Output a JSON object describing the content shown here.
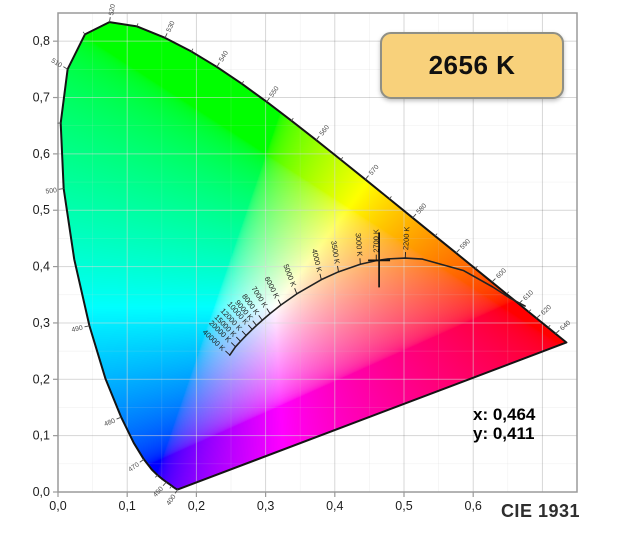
{
  "page": {
    "background": "#ffffff"
  },
  "badge": {
    "label": "2656 K",
    "fill": "#f8d17b",
    "border": "#8f8f85",
    "text_color": "#101010"
  },
  "readout": {
    "x_line": "x: 0,464",
    "y_line": "y: 0,411"
  },
  "caption": {
    "label": "CIE 1931"
  },
  "style": {
    "grid_major": "rgba(0,0,0,0.13)",
    "grid_minor": "rgba(0,0,0,0.05)",
    "grid_major_on_color": "rgba(255,255,255,0.40)",
    "grid_minor_on_color": "rgba(255,255,255,0.16)",
    "border": "#9a9a9a",
    "axis_label": "#1d1d1d",
    "locus_outline": "#141414",
    "planckian": "#222222",
    "wavelength_label": "#4a4a4a",
    "temperature_label": "#1d1d1d",
    "marker": "#111111"
  },
  "chart_data": {
    "type": "area",
    "subtype": "CIE 1931 xy chromaticity diagram with Planckian locus",
    "title": "CIE 1931",
    "xlabel": "",
    "ylabel": "",
    "xlim": [
      0,
      0.75
    ],
    "ylim": [
      0,
      0.85
    ],
    "grid": true,
    "x_ticks": [
      {
        "v": 0.0,
        "label": "0,0"
      },
      {
        "v": 0.1,
        "label": "0,1"
      },
      {
        "v": 0.2,
        "label": "0,2"
      },
      {
        "v": 0.3,
        "label": "0,3"
      },
      {
        "v": 0.4,
        "label": "0,4"
      },
      {
        "v": 0.5,
        "label": "0,5"
      },
      {
        "v": 0.6,
        "label": "0,6"
      }
    ],
    "y_ticks": [
      {
        "v": 0.0,
        "label": "0,0"
      },
      {
        "v": 0.1,
        "label": "0,1"
      },
      {
        "v": 0.2,
        "label": "0,2"
      },
      {
        "v": 0.3,
        "label": "0,3"
      },
      {
        "v": 0.4,
        "label": "0,4"
      },
      {
        "v": 0.5,
        "label": "0,5"
      },
      {
        "v": 0.6,
        "label": "0,6"
      },
      {
        "v": 0.7,
        "label": "0,7"
      },
      {
        "v": 0.8,
        "label": "0,8"
      }
    ],
    "marker": {
      "x": 0.464,
      "y": 0.411,
      "cct": "2656 K"
    },
    "spectral_locus": [
      [
        0.1741,
        0.005
      ],
      [
        0.1738,
        0.0049
      ],
      [
        0.1733,
        0.0048
      ],
      [
        0.1726,
        0.0048
      ],
      [
        0.1714,
        0.0051
      ],
      [
        0.1703,
        0.0058
      ],
      [
        0.1689,
        0.0069
      ],
      [
        0.1669,
        0.0086
      ],
      [
        0.1644,
        0.0109
      ],
      [
        0.1611,
        0.0138
      ],
      [
        0.1566,
        0.0177
      ],
      [
        0.151,
        0.0227
      ],
      [
        0.144,
        0.0297
      ],
      [
        0.1355,
        0.0399
      ],
      [
        0.1241,
        0.0578
      ],
      [
        0.1096,
        0.0868
      ],
      [
        0.0913,
        0.1327
      ],
      [
        0.0687,
        0.2007
      ],
      [
        0.0454,
        0.295
      ],
      [
        0.0235,
        0.4127
      ],
      [
        0.0082,
        0.5384
      ],
      [
        0.0039,
        0.6548
      ],
      [
        0.0139,
        0.7502
      ],
      [
        0.0389,
        0.812
      ],
      [
        0.0743,
        0.8338
      ],
      [
        0.1142,
        0.8262
      ],
      [
        0.1547,
        0.8059
      ],
      [
        0.1929,
        0.7816
      ],
      [
        0.2296,
        0.7543
      ],
      [
        0.2658,
        0.7243
      ],
      [
        0.3016,
        0.6923
      ],
      [
        0.3373,
        0.6589
      ],
      [
        0.3731,
        0.6245
      ],
      [
        0.4087,
        0.5896
      ],
      [
        0.4441,
        0.5547
      ],
      [
        0.4788,
        0.5202
      ],
      [
        0.5125,
        0.4866
      ],
      [
        0.5448,
        0.4544
      ],
      [
        0.5752,
        0.4242
      ],
      [
        0.6029,
        0.3965
      ],
      [
        0.627,
        0.3725
      ],
      [
        0.6482,
        0.3514
      ],
      [
        0.6658,
        0.334
      ],
      [
        0.6801,
        0.3197
      ],
      [
        0.6915,
        0.3083
      ],
      [
        0.7079,
        0.292
      ],
      [
        0.719,
        0.2809
      ],
      [
        0.726,
        0.274
      ],
      [
        0.7327,
        0.2673
      ],
      [
        0.7347,
        0.2653
      ]
    ],
    "planckian_locus": [
      [
        0.2483,
        0.243
      ],
      [
        0.2565,
        0.2577
      ],
      [
        0.2637,
        0.2673
      ],
      [
        0.2719,
        0.2779
      ],
      [
        0.2807,
        0.2884
      ],
      [
        0.2869,
        0.2956
      ],
      [
        0.2952,
        0.3048
      ],
      [
        0.3064,
        0.3166
      ],
      [
        0.3221,
        0.3318
      ],
      [
        0.3451,
        0.3516
      ],
      [
        0.3805,
        0.3768
      ],
      [
        0.4053,
        0.3907
      ],
      [
        0.4369,
        0.4041
      ],
      [
        0.4599,
        0.4106
      ],
      [
        0.477,
        0.4137
      ],
      [
        0.5018,
        0.4152
      ],
      [
        0.5267,
        0.4133
      ],
      [
        0.5857,
        0.3931
      ],
      [
        0.628,
        0.364
      ],
      [
        0.6528,
        0.3444
      ],
      [
        0.675,
        0.33
      ]
    ],
    "temperature_ticks": [
      {
        "label": "2200 K",
        "x": 0.5018,
        "y": 0.4152,
        "rot": -87,
        "anchor": "start"
      },
      {
        "label": "2700 K",
        "x": 0.4599,
        "y": 0.4106,
        "rot": -90,
        "anchor": "start"
      },
      {
        "label": "3000 K",
        "x": 0.4369,
        "y": 0.4041,
        "rot": 86,
        "anchor": "end"
      },
      {
        "label": "3500 K",
        "x": 0.4053,
        "y": 0.3907,
        "rot": 81,
        "anchor": "end"
      },
      {
        "label": "4000 K",
        "x": 0.3805,
        "y": 0.3768,
        "rot": 77,
        "anchor": "end"
      },
      {
        "label": "5000 K",
        "x": 0.3451,
        "y": 0.3516,
        "rot": 69,
        "anchor": "end"
      },
      {
        "label": "6000 K",
        "x": 0.3221,
        "y": 0.3318,
        "rot": 63,
        "anchor": "end"
      },
      {
        "label": "7000 K",
        "x": 0.3064,
        "y": 0.3166,
        "rot": 58,
        "anchor": "end"
      },
      {
        "label": "8000 K",
        "x": 0.2952,
        "y": 0.3048,
        "rot": 54,
        "anchor": "end"
      },
      {
        "label": "9000 K",
        "x": 0.2869,
        "y": 0.2956,
        "rot": 51,
        "anchor": "end"
      },
      {
        "label": "10000 K",
        "x": 0.2807,
        "y": 0.2884,
        "rot": 49,
        "anchor": "end"
      },
      {
        "label": "12000 K",
        "x": 0.2719,
        "y": 0.2779,
        "rot": 47,
        "anchor": "end"
      },
      {
        "label": "15000 K",
        "x": 0.2637,
        "y": 0.2673,
        "rot": 46,
        "anchor": "end"
      },
      {
        "label": "20000 K",
        "x": 0.2565,
        "y": 0.2577,
        "rot": 45,
        "anchor": "end"
      },
      {
        "label": "40000 K",
        "x": 0.2483,
        "y": 0.243,
        "rot": 43,
        "anchor": "end"
      }
    ],
    "wavelength_labels": [
      {
        "nm": "400",
        "x": 0.1733,
        "y": 0.0048,
        "rot": -55,
        "anchor": "end"
      },
      {
        "nm": "450",
        "x": 0.1566,
        "y": 0.0177,
        "rot": -48,
        "anchor": "end"
      },
      {
        "nm": "470",
        "x": 0.1241,
        "y": 0.0578,
        "rot": -35,
        "anchor": "end"
      },
      {
        "nm": "480",
        "x": 0.0913,
        "y": 0.1327,
        "rot": -22,
        "anchor": "end"
      },
      {
        "nm": "490",
        "x": 0.0454,
        "y": 0.295,
        "rot": -12,
        "anchor": "end"
      },
      {
        "nm": "500",
        "x": 0.0082,
        "y": 0.5384,
        "rot": -8,
        "anchor": "end"
      },
      {
        "nm": "510",
        "x": 0.0139,
        "y": 0.7502,
        "rot": 32,
        "anchor": "end"
      },
      {
        "nm": "520",
        "x": 0.0743,
        "y": 0.8338,
        "rot": -80,
        "anchor": "start"
      },
      {
        "nm": "530",
        "x": 0.1547,
        "y": 0.8059,
        "rot": -66,
        "anchor": "start"
      },
      {
        "nm": "540",
        "x": 0.2296,
        "y": 0.7543,
        "rot": -60,
        "anchor": "start"
      },
      {
        "nm": "550",
        "x": 0.3016,
        "y": 0.6923,
        "rot": -56,
        "anchor": "start"
      },
      {
        "nm": "560",
        "x": 0.3731,
        "y": 0.6245,
        "rot": -52,
        "anchor": "start"
      },
      {
        "nm": "570",
        "x": 0.4441,
        "y": 0.5547,
        "rot": -50,
        "anchor": "start"
      },
      {
        "nm": "580",
        "x": 0.5125,
        "y": 0.4866,
        "rot": -48,
        "anchor": "start"
      },
      {
        "nm": "590",
        "x": 0.5752,
        "y": 0.4242,
        "rot": -46,
        "anchor": "start"
      },
      {
        "nm": "600",
        "x": 0.627,
        "y": 0.3725,
        "rot": -45,
        "anchor": "start"
      },
      {
        "nm": "610",
        "x": 0.6658,
        "y": 0.334,
        "rot": -44,
        "anchor": "start"
      },
      {
        "nm": "620",
        "x": 0.6915,
        "y": 0.3083,
        "rot": -43,
        "anchor": "start"
      },
      {
        "nm": "640",
        "x": 0.719,
        "y": 0.2809,
        "rot": -42,
        "anchor": "start"
      }
    ],
    "minor_wavelength_ticks": [
      {
        "x": 0.0039,
        "y": 0.6548,
        "phi": 178
      },
      {
        "x": 0.0389,
        "y": 0.812,
        "phi": -125
      },
      {
        "x": 0.1142,
        "y": 0.8262,
        "phi": -72
      },
      {
        "x": 0.1929,
        "y": 0.7816,
        "phi": -63
      },
      {
        "x": 0.2658,
        "y": 0.7243,
        "phi": -58
      },
      {
        "x": 0.3373,
        "y": 0.6589,
        "phi": -54
      },
      {
        "x": 0.4087,
        "y": 0.5896,
        "phi": -51
      },
      {
        "x": 0.4788,
        "y": 0.5202,
        "phi": -49
      },
      {
        "x": 0.5448,
        "y": 0.4544,
        "phi": -47
      },
      {
        "x": 0.6029,
        "y": 0.3965,
        "phi": -45.5
      },
      {
        "x": 0.6482,
        "y": 0.3514,
        "phi": -44.5
      },
      {
        "x": 0.6801,
        "y": 0.3197,
        "phi": -43.5
      },
      {
        "x": 0.7079,
        "y": 0.292,
        "phi": -42.5
      },
      {
        "x": 0.144,
        "y": 0.0297,
        "phi": 140
      },
      {
        "x": 0.1644,
        "y": 0.0109,
        "phi": 128
      }
    ]
  }
}
